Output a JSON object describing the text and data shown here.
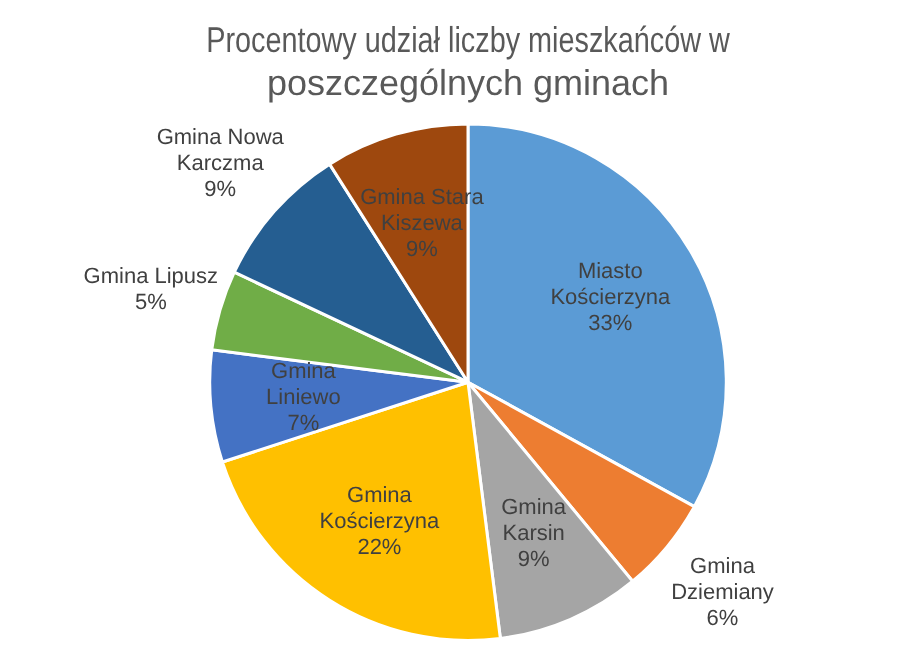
{
  "chart_data": {
    "type": "pie",
    "title": "Procentowy udział liczby mieszkańców w poszczególnych gminach",
    "categories": [
      "Miasto Kościerzyna",
      "Gmina Dziemiany",
      "Gmina Karsin",
      "Gmina Kościerzyna",
      "Gmina Liniewo",
      "Gmina Lipusz",
      "Gmina Nowa Karczma",
      "Gmina Stara Kiszewa"
    ],
    "values": [
      33,
      6,
      9,
      22,
      7,
      5,
      9,
      9
    ],
    "colors": [
      "#5b9bd5",
      "#ed7d31",
      "#a5a5a5",
      "#ffc000",
      "#4472c4",
      "#70ad47",
      "#255e91",
      "#9e480e"
    ],
    "value_labels": [
      "33%",
      "6%",
      "9%",
      "22%",
      "7%",
      "5%",
      "9%",
      "9%"
    ],
    "legend": false
  }
}
